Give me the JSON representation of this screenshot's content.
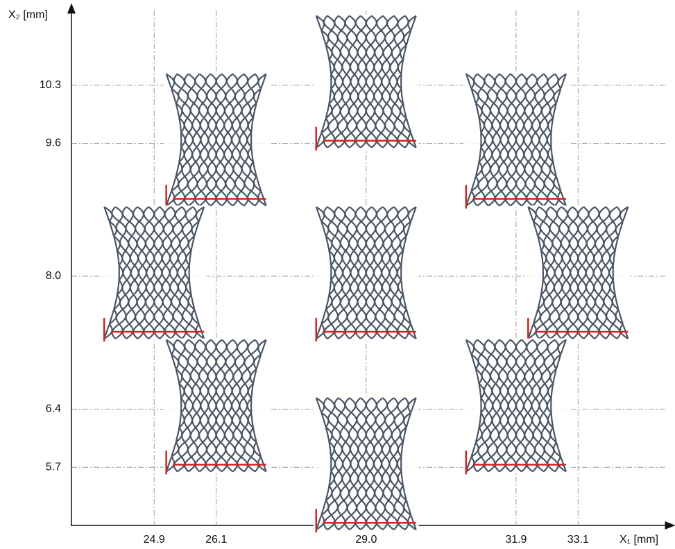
{
  "chart_data": {
    "type": "scatter",
    "x_label": "X₁ [mm]",
    "y_label": "X₂ [mm]",
    "x": [
      26.1,
      29.0,
      31.9,
      24.9,
      29.0,
      33.1,
      26.1,
      29.0,
      31.9
    ],
    "y": [
      9.6,
      10.3,
      9.6,
      8.0,
      8.0,
      8.0,
      6.4,
      5.7,
      6.4
    ],
    "color": "#4a5563",
    "marker_line_color": "#d42020",
    "xlim": [
      23.3,
      34.8
    ],
    "ylim": [
      5.0,
      11.2
    ],
    "xticks": [
      24.9,
      26.1,
      {
        "value": 29.0,
        "label": "29.0"
      },
      31.9,
      33.1
    ],
    "yticks": [
      5.7,
      6.4,
      {
        "value": 8.0,
        "label": "8.0"
      },
      9.6,
      10.3
    ],
    "grid": true
  }
}
